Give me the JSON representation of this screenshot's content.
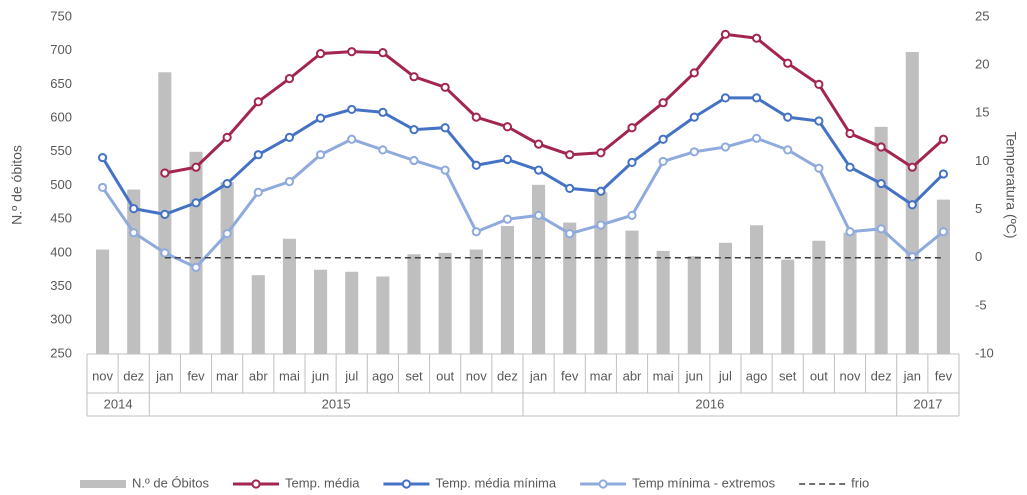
{
  "chart_data": {
    "type": "bar-line",
    "y_label": "N.º de óbitos",
    "y2_label": "Temperatura (ºC)",
    "categories": [
      "nov",
      "dez",
      "jan",
      "fev",
      "mar",
      "abr",
      "mai",
      "jun",
      "jul",
      "ago",
      "set",
      "out",
      "nov",
      "dez",
      "jan",
      "fev",
      "mar",
      "abr",
      "mai",
      "jun",
      "jul",
      "ago",
      "set",
      "out",
      "nov",
      "dez",
      "jan",
      "fev"
    ],
    "x_groups": [
      {
        "label": "2014",
        "count": 2
      },
      {
        "label": "2015",
        "count": 12
      },
      {
        "label": "2016",
        "count": 12
      },
      {
        "label": "2017",
        "count": 2
      }
    ],
    "ylim": [
      250,
      750
    ],
    "yticks": [
      250,
      300,
      350,
      400,
      450,
      500,
      550,
      600,
      650,
      700,
      750
    ],
    "y2lim": [
      -10,
      25
    ],
    "y2ticks": [
      -10,
      -5,
      0,
      5,
      10,
      15,
      20,
      25
    ],
    "series": [
      {
        "name": "N.º de Óbitos",
        "kind": "bar",
        "color": "#bfbfbf",
        "values": [
          405,
          494,
          668,
          550,
          505,
          367,
          421,
          375,
          372,
          365,
          398,
          400,
          405,
          440,
          501,
          445,
          490,
          433,
          403,
          395,
          415,
          441,
          390,
          418,
          430,
          587,
          698,
          479
        ]
      },
      {
        "name": "Temp. média",
        "kind": "line",
        "marker": true,
        "axis": "y2",
        "color": "#a3264f",
        "values": [
          null,
          null,
          8.8,
          9.4,
          12.5,
          16.2,
          18.6,
          21.2,
          21.4,
          21.3,
          18.8,
          17.7,
          14.6,
          13.6,
          11.8,
          10.7,
          10.9,
          13.5,
          16.1,
          19.2,
          23.2,
          22.8,
          20.2,
          18.0,
          12.9,
          11.5,
          9.4,
          12.3
        ]
      },
      {
        "name": "Temp. média mínima",
        "kind": "line",
        "marker": true,
        "axis": "y2",
        "color": "#4472c4",
        "values": [
          10.4,
          5.1,
          4.5,
          5.7,
          7.7,
          10.7,
          12.5,
          14.5,
          15.4,
          15.1,
          13.3,
          13.5,
          9.6,
          10.2,
          9.1,
          7.2,
          6.9,
          9.9,
          12.3,
          14.6,
          16.6,
          16.6,
          14.6,
          14.2,
          9.4,
          7.7,
          5.5,
          8.7
        ]
      },
      {
        "name": "Temp mínima - extremos",
        "kind": "line",
        "marker": true,
        "axis": "y2",
        "color": "#8faadc",
        "values": [
          7.3,
          2.6,
          0.5,
          -1.0,
          2.5,
          6.8,
          7.9,
          10.7,
          12.3,
          11.2,
          10.1,
          9.1,
          2.7,
          4.0,
          4.4,
          2.5,
          3.4,
          4.4,
          10.0,
          11.0,
          11.5,
          12.4,
          11.2,
          9.3,
          2.7,
          3.0,
          0.1,
          2.7
        ]
      },
      {
        "name": "frio",
        "kind": "line",
        "marker": false,
        "dashed": true,
        "axis": "y2",
        "color": "#404040",
        "values": [
          null,
          null,
          0,
          0,
          0,
          0,
          0,
          0,
          0,
          0,
          0,
          0,
          0,
          0,
          0,
          0,
          0,
          0,
          0,
          0,
          0,
          0,
          0,
          0,
          0,
          0,
          0,
          0
        ]
      }
    ]
  }
}
